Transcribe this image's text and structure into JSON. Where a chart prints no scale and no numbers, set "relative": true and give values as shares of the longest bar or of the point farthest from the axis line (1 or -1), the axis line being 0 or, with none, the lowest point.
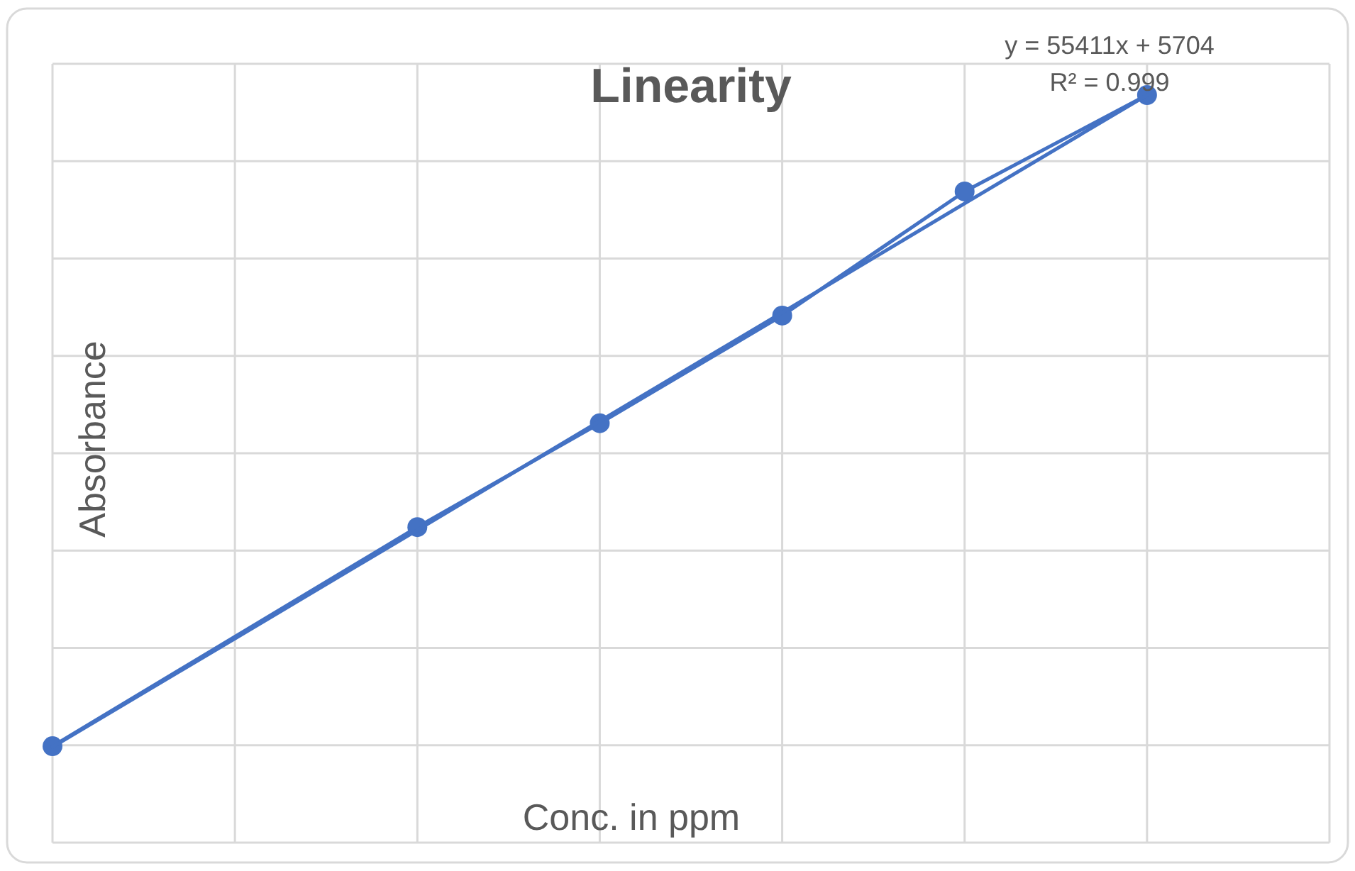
{
  "chart_data": {
    "type": "line",
    "title": "Linearity",
    "xlabel": "Conc. in ppm",
    "ylabel": "Absorbance",
    "relative": true,
    "grid": true,
    "categories": [
      null,
      null,
      null,
      null,
      null,
      null,
      null,
      null
    ],
    "annotations": [
      "y = 55411x + 5704",
      "R² = 0.999"
    ],
    "series": [
      {
        "color": "#4472c4",
        "marker": "circle",
        "line_style": "solid",
        "values": [
          0.129,
          null,
          0.422,
          0.561,
          0.705,
          0.871,
          1,
          null
        ]
      },
      {
        "color": "#4472c4",
        "marker": "none",
        "line_style": "solid",
        "values": [
          0.128,
          0.273,
          0.418,
          0.564,
          0.709,
          0.855,
          1,
          null
        ]
      }
    ]
  }
}
